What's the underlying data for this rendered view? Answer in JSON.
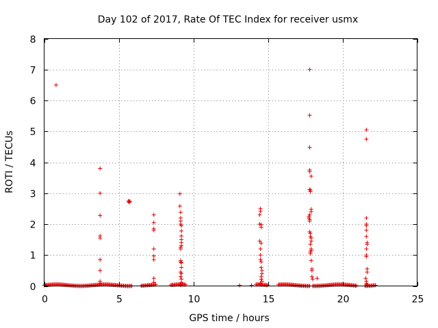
{
  "chart_data": {
    "type": "scatter",
    "title": "Day 102 of 2017, Rate Of TEC Index for receiver usmx",
    "xlabel": "GPS time / hours",
    "ylabel": "ROTI / TECUs",
    "xlim": [
      0,
      25
    ],
    "ylim": [
      0,
      8
    ],
    "xticks": [
      "0",
      "5",
      "10",
      "15",
      "20",
      "25"
    ],
    "yticks": [
      "0",
      "1",
      "2",
      "3",
      "4",
      "5",
      "6",
      "7",
      "8"
    ],
    "grid": true,
    "marker": "+",
    "color": "#e00000",
    "baseline_ranges": [
      [
        0.0,
        5.9
      ],
      [
        6.5,
        7.5
      ],
      [
        8.5,
        9.5
      ],
      [
        14.2,
        15.0
      ],
      [
        15.7,
        17.8
      ],
      [
        18.0,
        21.0
      ],
      [
        21.5,
        22.2
      ]
    ],
    "series": [
      {
        "x": [
          0.8,
          3.75,
          3.75,
          3.75,
          3.75,
          3.75,
          3.75,
          3.75,
          3.75,
          3.75,
          5.65,
          5.7,
          5.7,
          5.75,
          7.35,
          7.35,
          7.35,
          7.35,
          7.35,
          7.35,
          7.35,
          7.35,
          7.35,
          9.1,
          9.1,
          9.15,
          9.15,
          9.15,
          9.15,
          9.2,
          9.2,
          9.2,
          9.2,
          9.2,
          9.2,
          9.15,
          9.15,
          9.15,
          9.15,
          9.2,
          9.2,
          9.15,
          9.2,
          9.15,
          9.2,
          9.2,
          9.2,
          9.15,
          13.1,
          13.9,
          14.45,
          14.45,
          14.45,
          14.5,
          14.5,
          14.55,
          14.55,
          14.55,
          14.5,
          14.5,
          14.5,
          14.55,
          14.55,
          14.6,
          14.6,
          14.55,
          14.55,
          14.6,
          14.5,
          14.55,
          17.8,
          17.8,
          17.8,
          17.8,
          17.8,
          17.8,
          17.85,
          17.85,
          17.9,
          17.9,
          17.9,
          17.8,
          17.75,
          17.75,
          17.8,
          17.8,
          17.8,
          17.85,
          17.85,
          17.9,
          17.9,
          17.85,
          17.9,
          17.9,
          17.85,
          17.85,
          17.9,
          17.95,
          17.95,
          17.95,
          18.0,
          18.3,
          21.6,
          21.6,
          21.6,
          21.6,
          21.6,
          21.6,
          21.6,
          21.65,
          21.65,
          21.6,
          21.6,
          21.6,
          21.65,
          21.65,
          21.55,
          21.6,
          21.6,
          21.65
        ],
        "y": [
          6.5,
          3.8,
          3.0,
          2.28,
          1.62,
          1.55,
          0.85,
          0.5,
          0.15,
          0.08,
          2.75,
          2.73,
          2.7,
          2.74,
          2.3,
          2.05,
          1.85,
          1.8,
          1.2,
          0.97,
          0.85,
          0.25,
          0.12,
          2.98,
          2.58,
          2.38,
          2.2,
          2.1,
          2.0,
          1.95,
          1.78,
          1.62,
          1.5,
          1.4,
          1.3,
          1.25,
          1.2,
          0.82,
          0.78,
          0.75,
          0.6,
          0.45,
          0.4,
          0.3,
          0.22,
          0.12,
          0.08,
          0.03,
          0.02,
          0.02,
          2.3,
          2.0,
          1.45,
          2.5,
          2.42,
          1.98,
          1.9,
          1.38,
          1.2,
          1.0,
          0.85,
          0.78,
          0.6,
          0.5,
          0.4,
          0.3,
          0.22,
          0.15,
          0.08,
          0.05,
          7.0,
          5.52,
          4.48,
          3.75,
          3.7,
          3.12,
          3.1,
          3.05,
          3.55,
          2.48,
          2.4,
          2.3,
          2.25,
          2.2,
          2.15,
          2.1,
          1.75,
          1.7,
          1.6,
          1.55,
          1.45,
          1.35,
          1.2,
          1.15,
          1.1,
          1.05,
          0.82,
          0.55,
          0.5,
          0.3,
          0.22,
          0.25,
          5.05,
          4.75,
          2.2,
          2.0,
          1.95,
          1.8,
          1.6,
          1.4,
          1.35,
          1.2,
          1.0,
          0.95,
          0.55,
          0.45,
          0.25,
          0.15,
          0.08,
          0.04
        ]
      }
    ]
  }
}
